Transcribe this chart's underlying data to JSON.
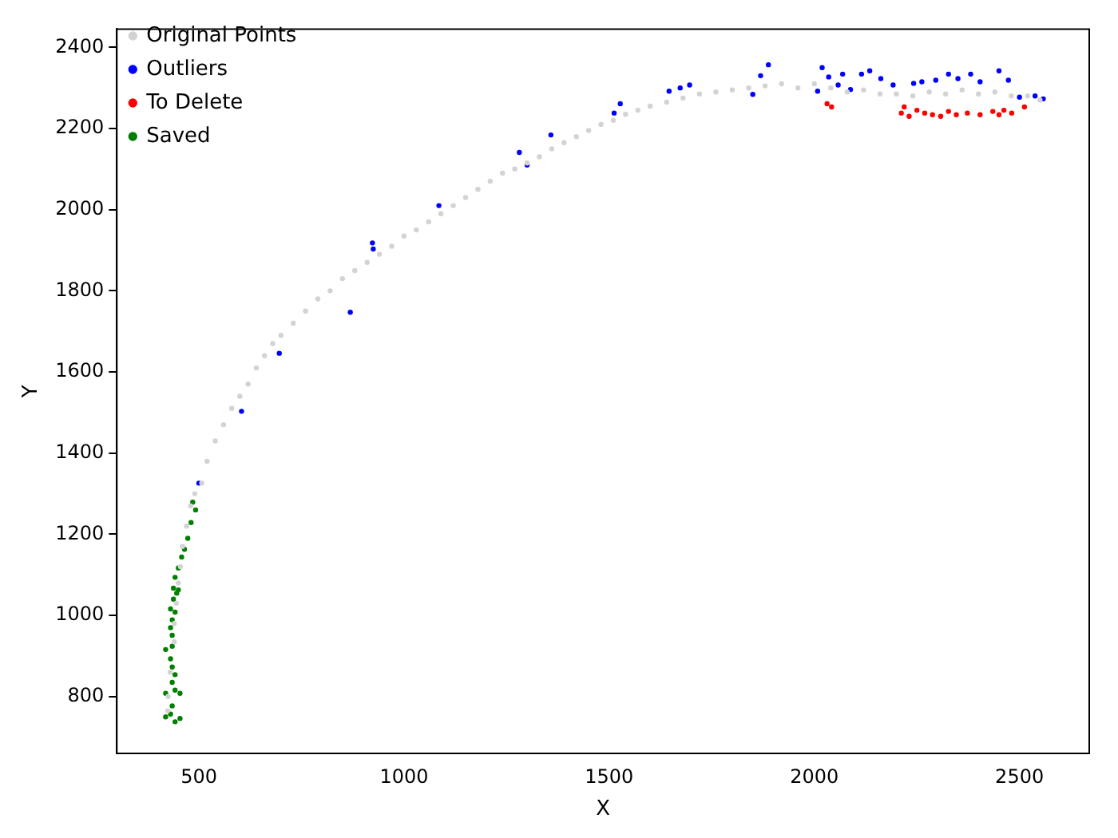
{
  "chart_data": {
    "type": "scatter",
    "xlabel": "X",
    "ylabel": "Y",
    "xlim": [
      300,
      2670
    ],
    "ylim": [
      660,
      2445
    ],
    "xticks": [
      500,
      1000,
      1500,
      2000,
      2500
    ],
    "yticks": [
      800,
      1000,
      1200,
      1400,
      1600,
      1800,
      2000,
      2200,
      2400
    ],
    "legend": "top left",
    "marker": "circle",
    "grid": false,
    "series": [
      {
        "name": "Original Points",
        "color": "#d3d3d3",
        "x": [
          424,
          425,
          430,
          440,
          440,
          445,
          450,
          455,
          460,
          470,
          480,
          490,
          507,
          520,
          540,
          560,
          580,
          600,
          620,
          640,
          660,
          680,
          700,
          730,
          760,
          790,
          820,
          850,
          880,
          910,
          940,
          970,
          1000,
          1030,
          1060,
          1090,
          1120,
          1150,
          1180,
          1210,
          1240,
          1270,
          1300,
          1330,
          1360,
          1390,
          1420,
          1450,
          1480,
          1510,
          1540,
          1570,
          1600,
          1640,
          1680,
          1720,
          1760,
          1800,
          1840,
          1880,
          1920,
          1960,
          2000,
          2040,
          2080,
          2120,
          2160,
          2200,
          2240,
          2280,
          2320,
          2360,
          2400,
          2440,
          2480,
          2520,
          2550
        ],
        "values": [
          765,
          800,
          860,
          935,
          980,
          1030,
          1080,
          1120,
          1170,
          1220,
          1270,
          1300,
          1326,
          1380,
          1430,
          1470,
          1510,
          1540,
          1570,
          1610,
          1640,
          1670,
          1690,
          1720,
          1750,
          1780,
          1800,
          1830,
          1850,
          1870,
          1890,
          1910,
          1935,
          1950,
          1970,
          1990,
          2010,
          2030,
          2050,
          2070,
          2090,
          2100,
          2115,
          2130,
          2150,
          2165,
          2180,
          2195,
          2210,
          2220,
          2235,
          2245,
          2255,
          2265,
          2275,
          2285,
          2290,
          2295,
          2300,
          2305,
          2310,
          2300,
          2310,
          2300,
          2290,
          2295,
          2285,
          2285,
          2280,
          2290,
          2285,
          2295,
          2285,
          2290,
          2280,
          2280,
          2270
        ]
      },
      {
        "name": "Outliers",
        "color": "#0000ff",
        "x": [
          500,
          604,
          696,
          869,
          923,
          925,
          1085,
          1281,
          1300,
          1358,
          1512,
          1527,
          1646,
          1673,
          1696,
          1850,
          1869,
          1888,
          2008,
          2019,
          2035,
          2058,
          2069,
          2088,
          2115,
          2135,
          2162,
          2192,
          2242,
          2262,
          2296,
          2327,
          2350,
          2381,
          2404,
          2450,
          2473,
          2500,
          2538,
          2558
        ],
        "values": [
          1326,
          1503,
          1646,
          1747,
          1918,
          1903,
          2010,
          2141,
          2110,
          2184,
          2238,
          2261,
          2292,
          2300,
          2307,
          2284,
          2330,
          2357,
          2292,
          2350,
          2327,
          2307,
          2334,
          2296,
          2334,
          2342,
          2323,
          2307,
          2311,
          2315,
          2319,
          2334,
          2323,
          2334,
          2315,
          2342,
          2319,
          2277,
          2280,
          2273
        ]
      },
      {
        "name": "To Delete",
        "color": "#ff0000",
        "x": [
          2031,
          2042,
          2212,
          2219,
          2231,
          2250,
          2269,
          2288,
          2308,
          2327,
          2346,
          2373,
          2404,
          2435,
          2450,
          2462,
          2481,
          2512
        ],
        "values": [
          2261,
          2253,
          2238,
          2253,
          2230,
          2245,
          2238,
          2234,
          2230,
          2242,
          2234,
          2238,
          2234,
          2242,
          2234,
          2245,
          2238,
          2253
        ]
      },
      {
        "name": "Saved",
        "color": "#008000",
        "x": [
          492,
          485,
          481,
          473,
          465,
          458,
          450,
          442,
          446,
          438,
          431,
          435,
          431,
          435,
          419,
          431,
          435,
          442,
          435,
          419,
          454,
          435,
          419,
          442,
          431,
          454,
          442,
          438,
          450,
          435,
          442
        ],
        "values": [
          1260,
          1279,
          1229,
          1190,
          1163,
          1144,
          1117,
          1094,
          1055,
          1040,
          1016,
          989,
          970,
          951,
          916,
          893,
          873,
          854,
          835,
          808,
          808,
          777,
          750,
          738,
          757,
          746,
          1008,
          1067,
          1063,
          924,
          816
        ]
      }
    ]
  }
}
